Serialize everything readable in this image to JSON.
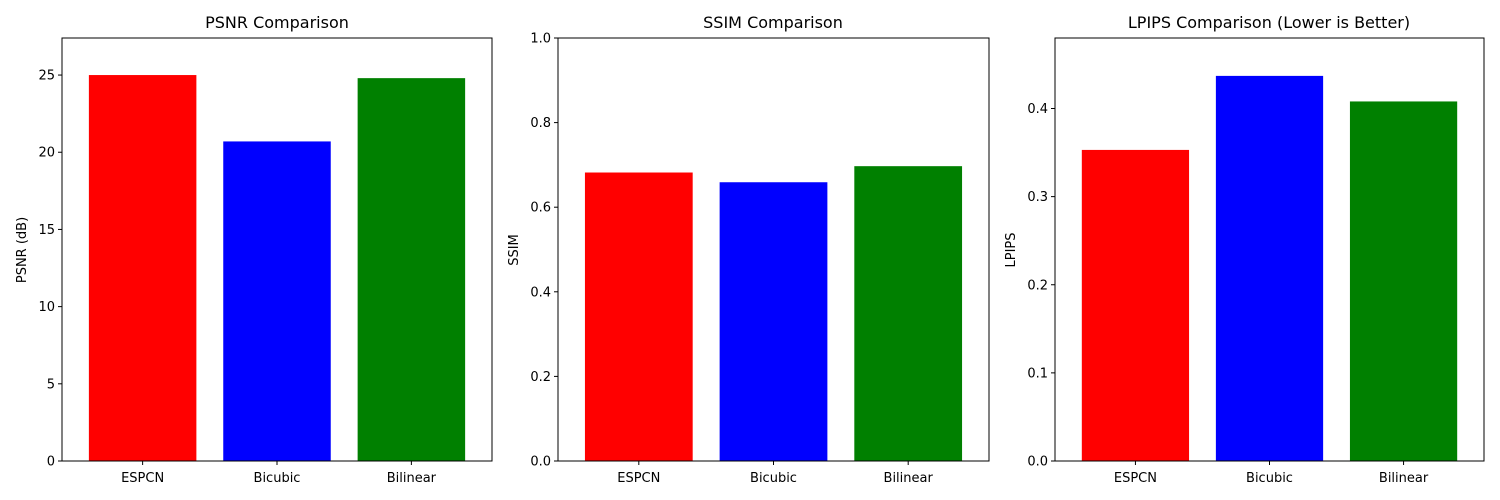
{
  "chart_data": [
    {
      "type": "bar",
      "title": "PSNR Comparison",
      "xlabel": "",
      "ylabel": "PSNR (dB)",
      "categories": [
        "ESPCN",
        "Bicubic",
        "Bilinear"
      ],
      "values": [
        25.0,
        20.7,
        24.8
      ],
      "colors": [
        "#ff0000",
        "#0000ff",
        "#008000"
      ],
      "ylim": [
        0,
        27.4
      ],
      "yticks": [
        0,
        5,
        10,
        15,
        20,
        25
      ],
      "ytick_labels": [
        "0",
        "5",
        "10",
        "15",
        "20",
        "25"
      ],
      "grid": false,
      "legend": "none"
    },
    {
      "type": "bar",
      "title": "SSIM Comparison",
      "xlabel": "",
      "ylabel": "SSIM",
      "categories": [
        "ESPCN",
        "Bicubic",
        "Bilinear"
      ],
      "values": [
        0.682,
        0.659,
        0.697
      ],
      "colors": [
        "#ff0000",
        "#0000ff",
        "#008000"
      ],
      "ylim": [
        0,
        1.0
      ],
      "yticks": [
        0,
        0.2,
        0.4,
        0.6,
        0.8,
        1.0
      ],
      "ytick_labels": [
        "0.0",
        "0.2",
        "0.4",
        "0.6",
        "0.8",
        "1.0"
      ],
      "grid": false,
      "legend": "none"
    },
    {
      "type": "bar",
      "title": "LPIPS Comparison (Lower is Better)",
      "xlabel": "",
      "ylabel": "LPIPS",
      "categories": [
        "ESPCN",
        "Bicubic",
        "Bilinear"
      ],
      "values": [
        0.353,
        0.437,
        0.408
      ],
      "colors": [
        "#ff0000",
        "#0000ff",
        "#008000"
      ],
      "ylim": [
        0,
        0.48
      ],
      "yticks": [
        0,
        0.1,
        0.2,
        0.3,
        0.4
      ],
      "ytick_labels": [
        "0.0",
        "0.1",
        "0.2",
        "0.3",
        "0.4"
      ],
      "grid": false,
      "legend": "none"
    }
  ]
}
